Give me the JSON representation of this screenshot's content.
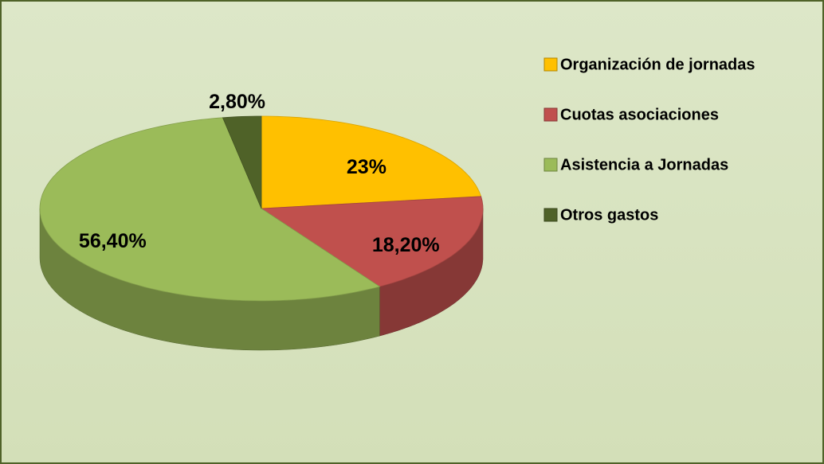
{
  "chart_data": {
    "type": "pie",
    "categories": [
      "Organización de jornadas",
      "Cuotas asociaciones",
      "Asistencia a Jornadas",
      "Otros gastos"
    ],
    "values": [
      23,
      18.2,
      56.4,
      2.8
    ],
    "value_labels": [
      "23%",
      "18,20%",
      "56,40%",
      "2,80%"
    ],
    "colors": [
      "#ffc000",
      "#c0504d",
      "#9bbb59",
      "#4f6228"
    ],
    "legend": "right"
  }
}
